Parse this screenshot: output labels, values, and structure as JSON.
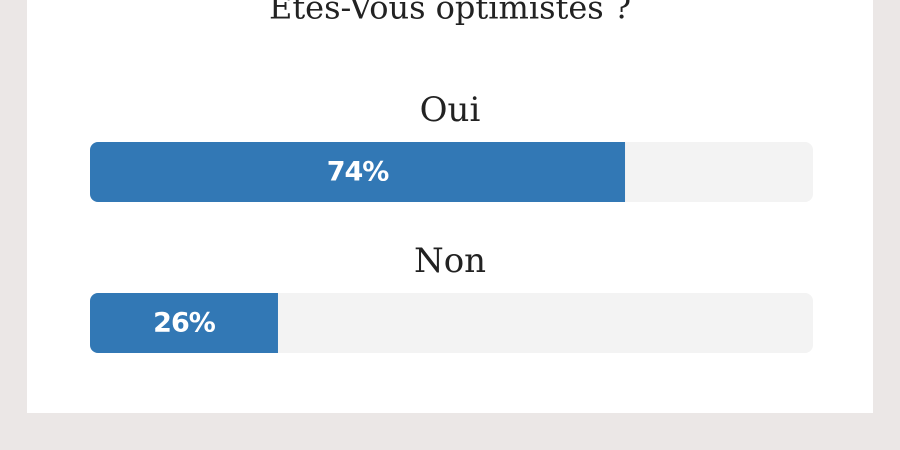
{
  "poll": {
    "title": "Êtes-Vous optimistes ?",
    "xlim": [
      0,
      100
    ],
    "options": [
      {
        "label": "Oui",
        "value": 74,
        "value_label": "74%"
      },
      {
        "label": "Non",
        "value": 26,
        "value_label": "26%"
      }
    ],
    "bar_color": "#3278b5",
    "track_color": "#f3f3f3"
  }
}
